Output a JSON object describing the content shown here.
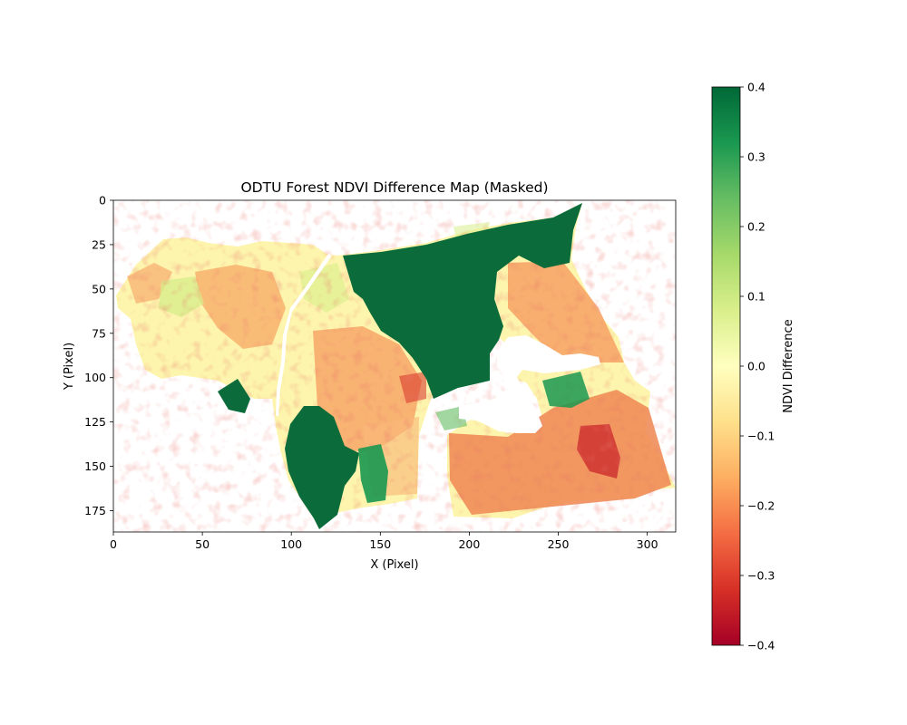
{
  "chart_data": {
    "type": "heatmap",
    "title": "ODTU Forest NDVI Difference Map (Masked)",
    "xlabel": "X (Pixel)",
    "ylabel": "Y (Pixel)",
    "xlim": [
      0,
      316
    ],
    "ylim": [
      187,
      0
    ],
    "x_ticks": [
      0,
      50,
      100,
      150,
      200,
      250,
      300
    ],
    "y_ticks": [
      0,
      25,
      50,
      75,
      100,
      125,
      150,
      175
    ],
    "colorbar": {
      "label": "NDVI Difference",
      "colormap": "RdYlGn",
      "min": -0.4,
      "max": 0.4,
      "ticks": [
        "0.4",
        "0.3",
        "0.2",
        "0.1",
        "0.0",
        "−0.1",
        "−0.2",
        "−0.3",
        "−0.4"
      ]
    },
    "masked_color": "#ffffff",
    "grid": false
  }
}
